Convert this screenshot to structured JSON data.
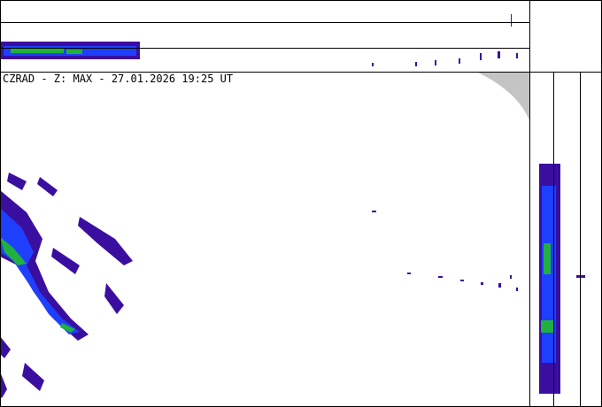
{
  "header": {
    "title": "CZRAD - Z: MAX - 27.01.2026 19:25 UT"
  }
}
